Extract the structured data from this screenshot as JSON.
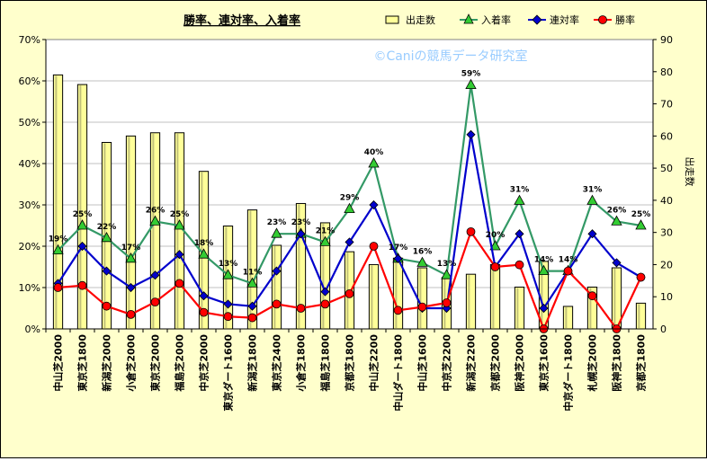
{
  "chart_data": {
    "type": "bar-line-combo",
    "title": "勝率、連対率、入着率",
    "watermark": "©Caniの競馬データ研究室",
    "y2label": "出走数",
    "ylim": [
      0,
      70
    ],
    "y_ticks": [
      "0%",
      "10%",
      "20%",
      "30%",
      "40%",
      "50%",
      "60%",
      "70%"
    ],
    "y2lim": [
      0,
      90
    ],
    "y2_ticks": [
      "0",
      "10",
      "20",
      "30",
      "40",
      "50",
      "60",
      "70",
      "80",
      "90"
    ],
    "legend_position": "top",
    "grid": true,
    "categories": [
      "中山芝2000",
      "東京芝1800",
      "新潟芝2000",
      "小倉芝2000",
      "東京芝2000",
      "福島芝2000",
      "中京芝2000",
      "東京ダート1600",
      "新潟芝1800",
      "東京芝2400",
      "小倉芝1800",
      "福島芝1800",
      "京都芝1800",
      "中山芝2200",
      "中山ダート1800",
      "中山芝1600",
      "中京芝2200",
      "新潟芝2200",
      "京都芝2000",
      "阪神芝2000",
      "東京芝1600",
      "中京ダート1800",
      "札幌芝2000",
      "阪神芝1800",
      "京都芝1800"
    ],
    "series": [
      {
        "name": "出走数",
        "kind": "bar",
        "axis": "right",
        "color": "#ffff99",
        "values": [
          79,
          76,
          58,
          60,
          61,
          61,
          49,
          32,
          37,
          26,
          39,
          33,
          24,
          20,
          22,
          19,
          16,
          17,
          20,
          13,
          21,
          7,
          13,
          19,
          8
        ]
      },
      {
        "name": "入着率",
        "kind": "line",
        "axis": "left",
        "color": "#339966",
        "marker": "triangle",
        "values": [
          19,
          25,
          22,
          17,
          26,
          25,
          18,
          13,
          11,
          23,
          23,
          21,
          29,
          40,
          17,
          16,
          13,
          59,
          20,
          31,
          14,
          14,
          31,
          26,
          25
        ],
        "labels": [
          "19%",
          "25%",
          "22%",
          "17%",
          "26%",
          "25%",
          "18%",
          "13%",
          "11%",
          "23%",
          "23%",
          "21%",
          "29%",
          "40%",
          "17%",
          "16%",
          "13%",
          "59%",
          "20%",
          "31%",
          "14%",
          "14%",
          "31%",
          "26%",
          "25%"
        ]
      },
      {
        "name": "連対率",
        "kind": "line",
        "axis": "left",
        "color": "#0000cc",
        "marker": "diamond",
        "values": [
          11,
          20,
          14,
          10,
          13,
          18,
          8,
          6,
          5.5,
          14,
          23,
          9,
          21,
          30,
          17,
          5,
          5,
          47,
          15,
          23,
          5,
          14,
          23,
          16,
          12.5
        ]
      },
      {
        "name": "勝率",
        "kind": "line",
        "axis": "left",
        "color": "#ff0000",
        "marker": "circle",
        "values": [
          10,
          10.5,
          5.5,
          3.5,
          6.5,
          11,
          4,
          3,
          2.7,
          6,
          5,
          6,
          8.5,
          20,
          4.5,
          5.3,
          6.3,
          23.5,
          15,
          15.5,
          0,
          14,
          8,
          0,
          12.5
        ]
      }
    ]
  }
}
